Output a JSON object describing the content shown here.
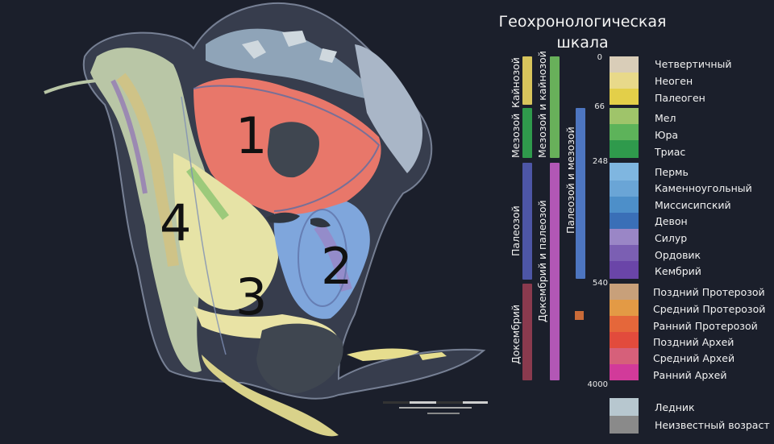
{
  "regions": [
    "1",
    "2",
    "3",
    "4"
  ],
  "legend": {
    "title_line1": "Геохронологическая",
    "title_line2": "шкала",
    "eras": {
      "cenozoic": "Кайнозой",
      "mesozoic": "Мезозой",
      "paleozoic": "Палеозой",
      "precambrian": "Докембрий",
      "meso_ceno": "Мезозой и кайнозой",
      "precambrian_paleo": "Докембрий и палеозой",
      "paleo_meso": "Палеозой и мезозой"
    },
    "ages": [
      "0",
      "66",
      "248",
      "540",
      "4000"
    ],
    "periods": [
      {
        "label": "Четвертичный",
        "color": "#d9cdb8"
      },
      {
        "label": "Неоген",
        "color": "#e8d98a"
      },
      {
        "label": "Палеоген",
        "color": "#e3cf49"
      },
      {
        "label": "Мел",
        "color": "#9fc46a"
      },
      {
        "label": "Юра",
        "color": "#5db35a"
      },
      {
        "label": "Триас",
        "color": "#2f9a4c"
      },
      {
        "label": "Пермь",
        "color": "#7fb6e0"
      },
      {
        "label": "Каменноугольный",
        "color": "#6aa5d6"
      },
      {
        "label": "Миссисипский",
        "color": "#4d8fc9"
      },
      {
        "label": "Девон",
        "color": "#3a6fb7"
      },
      {
        "label": "Силур",
        "color": "#9a86c6"
      },
      {
        "label": "Ордовик",
        "color": "#7b5fb3"
      },
      {
        "label": "Кембрий",
        "color": "#6a45a8"
      },
      {
        "label": "Поздний Протерозой",
        "color": "#c8a07a"
      },
      {
        "label": "Средний Протерозой",
        "color": "#e39a45"
      },
      {
        "label": "Ранний Протерозой",
        "color": "#e5673a"
      },
      {
        "label": "Поздний Архей",
        "color": "#e24b3c"
      },
      {
        "label": "Средний Архей",
        "color": "#d6607a"
      },
      {
        "label": "Ранний Архей",
        "color": "#d23a9a"
      },
      {
        "label": "Ледник",
        "color": "#b7c7cf"
      },
      {
        "label": "Неизвестный возраст",
        "color": "#8a8a8a"
      }
    ]
  }
}
